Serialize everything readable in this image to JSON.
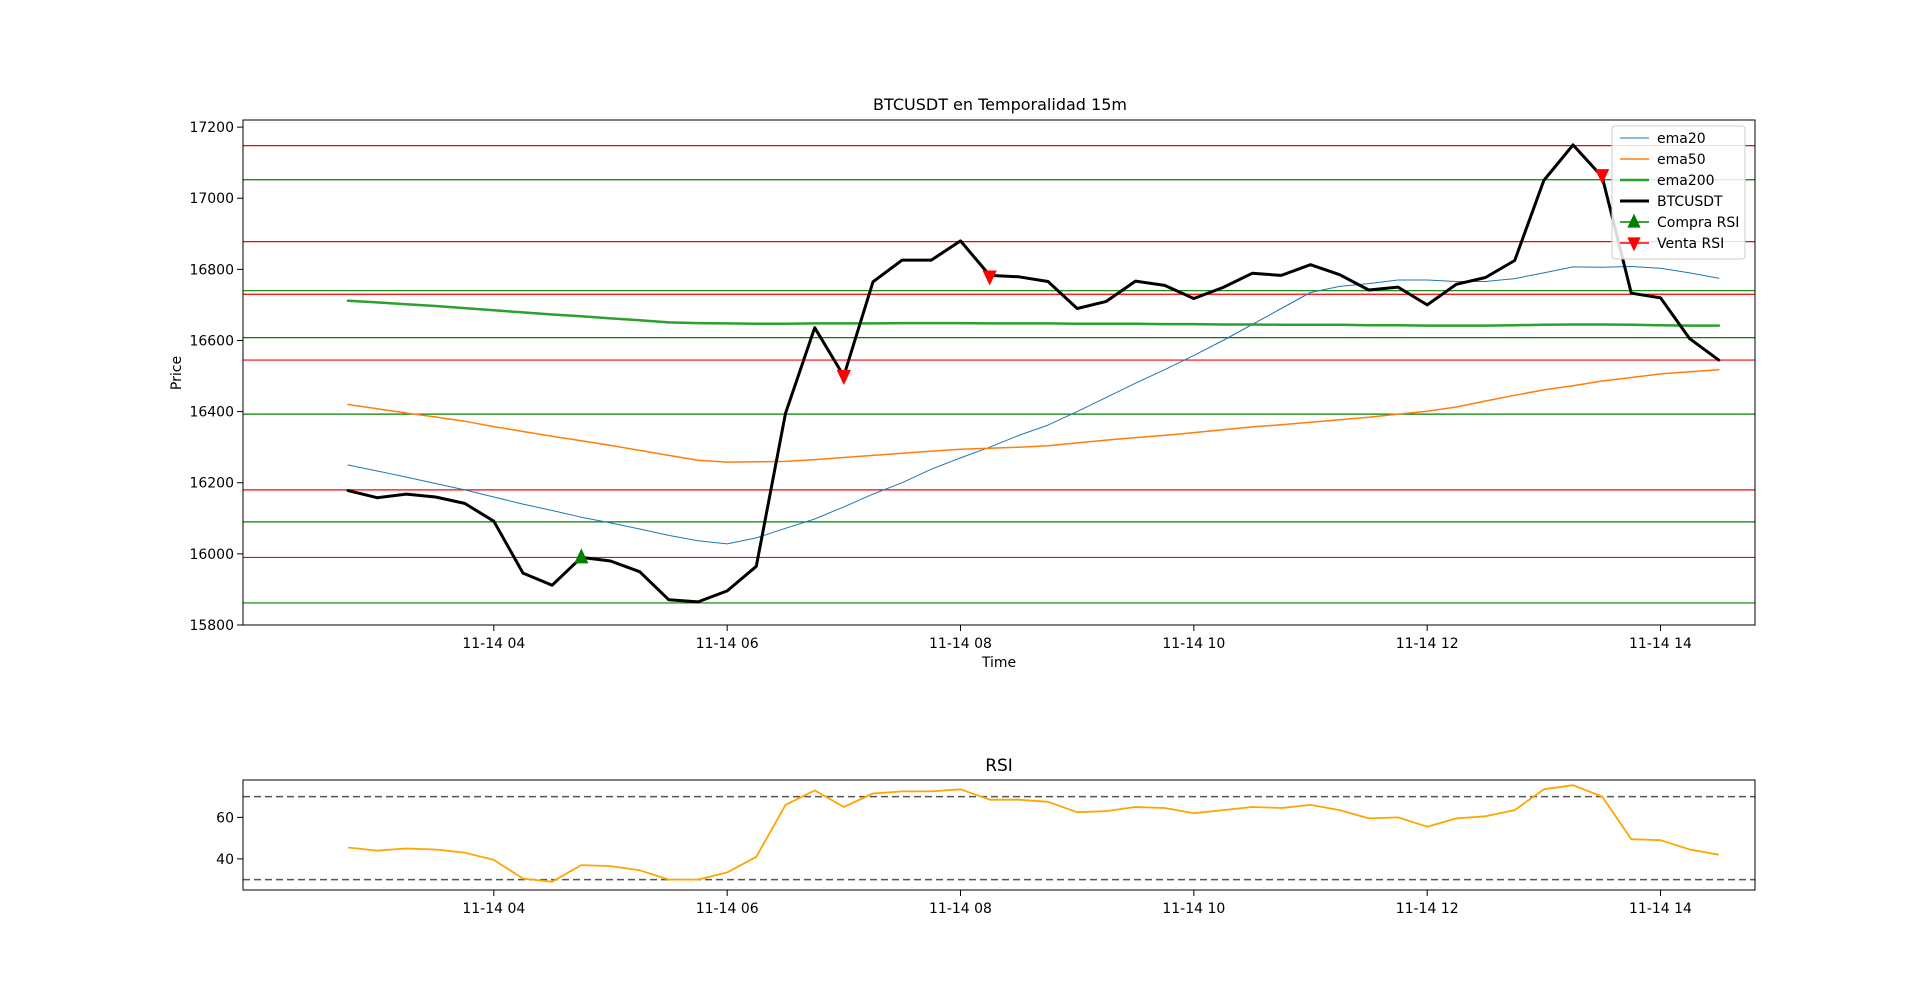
{
  "chart_data": [
    {
      "type": "line",
      "title": "BTCUSDT en Temporalidad 15m",
      "xlabel": "Time",
      "ylabel": "Price",
      "ylim": [
        15800,
        17220
      ],
      "xlim_hours": [
        1.85,
        14.81
      ],
      "x_hours": [
        2.75,
        3.0,
        3.25,
        3.5,
        3.75,
        4.0,
        4.25,
        4.5,
        4.75,
        5.0,
        5.25,
        5.5,
        5.75,
        6.0,
        6.25,
        6.5,
        6.75,
        7.0,
        7.25,
        7.5,
        7.75,
        8.0,
        8.25,
        8.5,
        8.75,
        9.0,
        9.25,
        9.5,
        9.75,
        10.0,
        10.25,
        10.5,
        10.75,
        11.0,
        11.25,
        11.5,
        11.75,
        12.0,
        12.25,
        12.5,
        12.75,
        13.0,
        13.25,
        13.5,
        13.75,
        14.0,
        14.25,
        14.5
      ],
      "x_ticks": [
        {
          "value": 4,
          "label": "11-14 04"
        },
        {
          "value": 6,
          "label": "11-14 06"
        },
        {
          "value": 8,
          "label": "11-14 08"
        },
        {
          "value": 10,
          "label": "11-14 10"
        },
        {
          "value": 12,
          "label": "11-14 12"
        },
        {
          "value": 14,
          "label": "11-14 14"
        }
      ],
      "y_ticks": [
        15800,
        16000,
        16200,
        16400,
        16600,
        16800,
        17000,
        17200
      ],
      "series": [
        {
          "name": "ema20",
          "color": "#1f77b4",
          "width": 1,
          "values": [
            16250,
            16233,
            16216,
            16198,
            16180,
            16160,
            16140,
            16122,
            16103,
            16087,
            16070,
            16052,
            16037,
            16028,
            16045,
            16072,
            16098,
            16132,
            16168,
            16200,
            16238,
            16270,
            16300,
            16333,
            16362,
            16400,
            16440,
            16480,
            16518,
            16558,
            16600,
            16645,
            16690,
            16735,
            16752,
            16760,
            16770,
            16770,
            16766,
            16766,
            16774,
            16790,
            16807,
            16806,
            16808,
            16803,
            16790,
            16775
          ]
        },
        {
          "name": "ema50",
          "color": "#ff7f0e",
          "width": 1.5,
          "values": [
            16420,
            16408,
            16396,
            16385,
            16373,
            16358,
            16344,
            16331,
            16318,
            16305,
            16291,
            16277,
            16263,
            16258,
            16259,
            16260,
            16265,
            16271,
            16277,
            16283,
            16289,
            16294,
            16297,
            16300,
            16304,
            16312,
            16320,
            16327,
            16333,
            16341,
            16349,
            16357,
            16363,
            16370,
            16377,
            16384,
            16393,
            16401,
            16413,
            16430,
            16446,
            16461,
            16473,
            16486,
            16496,
            16506,
            16512,
            16518
          ]
        },
        {
          "name": "ema200",
          "color": "#2ca02c",
          "width": 2.5,
          "values": [
            16712,
            16707,
            16702,
            16697,
            16691,
            16685,
            16679,
            16673,
            16668,
            16662,
            16657,
            16651,
            16649,
            16648,
            16647,
            16647,
            16648,
            16648,
            16648,
            16649,
            16649,
            16649,
            16648,
            16648,
            16648,
            16647,
            16647,
            16647,
            16646,
            16646,
            16645,
            16645,
            16644,
            16644,
            16644,
            16643,
            16643,
            16642,
            16642,
            16642,
            16643,
            16644,
            16645,
            16645,
            16644,
            16643,
            16642,
            16642
          ]
        },
        {
          "name": "BTCUSDT",
          "color": "#000000",
          "width": 3,
          "values": [
            16178,
            16158,
            16168,
            16160,
            16142,
            16092,
            15946,
            15912,
            15990,
            15980,
            15950,
            15871,
            15865,
            15896,
            15965,
            16395,
            16636,
            16500,
            16765,
            16826,
            16826,
            16880,
            16783,
            16779,
            16766,
            16690,
            16710,
            16767,
            16755,
            16718,
            16749,
            16789,
            16783,
            16813,
            16785,
            16742,
            16750,
            16700,
            16758,
            16777,
            16825,
            17050,
            17150,
            17060,
            16733,
            16720,
            16605,
            16545
          ]
        },
        {
          "name": "Compra RSI",
          "color": "#008000",
          "marker": "triangle-up",
          "points": [
            {
              "x": 4.75,
              "y": 15990
            }
          ]
        },
        {
          "name": "Venta RSI",
          "color": "#ff0000",
          "marker": "triangle-down",
          "points": [
            {
              "x": 7.0,
              "y": 16500
            },
            {
              "x": 8.25,
              "y": 16780
            },
            {
              "x": 13.5,
              "y": 17065
            }
          ]
        }
      ],
      "horizontal_lines": [
        {
          "y": 17148,
          "color": "#ff0000"
        },
        {
          "y": 17052,
          "color": "#008000"
        },
        {
          "y": 16878,
          "color": "#ff0000"
        },
        {
          "y": 16740,
          "color": "#008000"
        },
        {
          "y": 16730,
          "color": "#ff0000"
        },
        {
          "y": 16608,
          "color": "#008000"
        },
        {
          "y": 16545,
          "color": "#ff0000"
        },
        {
          "y": 16393,
          "color": "#008000"
        },
        {
          "y": 16180,
          "color": "#ff0000"
        },
        {
          "y": 16090,
          "color": "#008000"
        },
        {
          "y": 15990,
          "color": "#ff0000"
        },
        {
          "y": 15862,
          "color": "#008000"
        }
      ],
      "legend_position": "top-right"
    },
    {
      "type": "line",
      "title": "RSI",
      "ylim": [
        25,
        78
      ],
      "y_ticks": [
        40,
        60
      ],
      "reference_lines": [
        70,
        30
      ],
      "series": [
        {
          "name": "RSI",
          "color": "#ffa500",
          "values": [
            45.5,
            44,
            45,
            44.5,
            43,
            39.5,
            30.5,
            29,
            37,
            36.5,
            34.5,
            30,
            30,
            33.5,
            41,
            66,
            73,
            65,
            71.5,
            72.5,
            72.5,
            73.5,
            68.5,
            68.5,
            67.5,
            62.5,
            63,
            65,
            64.5,
            62,
            63.5,
            65,
            64.5,
            66,
            63.5,
            59.5,
            60,
            55.5,
            59.5,
            60.5,
            63.5,
            73.5,
            75.5,
            70,
            49.5,
            49,
            44.5,
            42
          ]
        }
      ]
    }
  ]
}
